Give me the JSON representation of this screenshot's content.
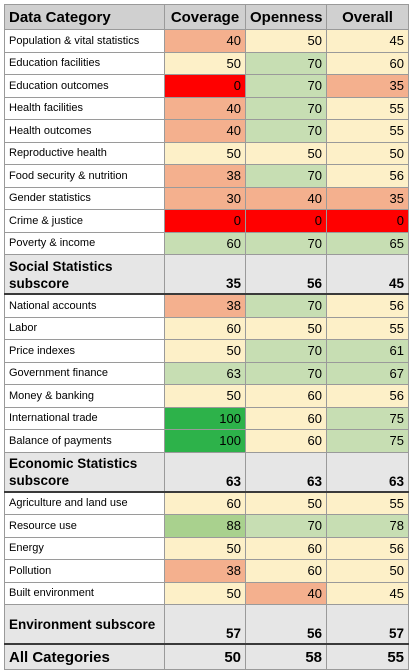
{
  "headers": {
    "category": "Data Category",
    "coverage": "Coverage",
    "openness": "Openness",
    "overall": "Overall"
  },
  "colors": {
    "light": "#fdf0c8",
    "green": "#c7deb3",
    "orange": "#f4b08e",
    "red": "#ff0000",
    "dark_green": "#2db24a",
    "mid_green": "#a9d18e",
    "sub_bg": "#e6e6e6"
  },
  "sections": [
    {
      "rows": [
        {
          "label": "Population & vital statistics",
          "coverage": "40",
          "openness": "50",
          "overall": "45",
          "c": [
            "orange",
            "light",
            "light"
          ]
        },
        {
          "label": "Education facilities",
          "coverage": "50",
          "openness": "70",
          "overall": "60",
          "c": [
            "light",
            "green",
            "light"
          ]
        },
        {
          "label": "Education outcomes",
          "coverage": "0",
          "openness": "70",
          "overall": "35",
          "c": [
            "red",
            "green",
            "orange"
          ]
        },
        {
          "label": "Health facilities",
          "coverage": "40",
          "openness": "70",
          "overall": "55",
          "c": [
            "orange",
            "green",
            "light"
          ]
        },
        {
          "label": "Health outcomes",
          "coverage": "40",
          "openness": "70",
          "overall": "55",
          "c": [
            "orange",
            "green",
            "light"
          ]
        },
        {
          "label": "Reproductive health",
          "coverage": "50",
          "openness": "50",
          "overall": "50",
          "c": [
            "light",
            "light",
            "light"
          ]
        },
        {
          "label": "Food security & nutrition",
          "coverage": "38",
          "openness": "70",
          "overall": "56",
          "c": [
            "orange",
            "green",
            "light"
          ]
        },
        {
          "label": "Gender statistics",
          "coverage": "30",
          "openness": "40",
          "overall": "35",
          "c": [
            "orange",
            "orange",
            "orange"
          ]
        },
        {
          "label": "Crime & justice",
          "coverage": "0",
          "openness": "0",
          "overall": "0",
          "c": [
            "red",
            "red",
            "red"
          ]
        },
        {
          "label": "Poverty & income",
          "coverage": "60",
          "openness": "70",
          "overall": "65",
          "c": [
            "green",
            "green",
            "green"
          ]
        }
      ],
      "subscore": {
        "label": "Social Statistics subscore",
        "coverage": "35",
        "openness": "56",
        "overall": "45"
      }
    },
    {
      "rows": [
        {
          "label": "National accounts",
          "coverage": "38",
          "openness": "70",
          "overall": "56",
          "c": [
            "orange",
            "green",
            "light"
          ]
        },
        {
          "label": "Labor",
          "coverage": "60",
          "openness": "50",
          "overall": "55",
          "c": [
            "light",
            "light",
            "light"
          ]
        },
        {
          "label": "Price indexes",
          "coverage": "50",
          "openness": "70",
          "overall": "61",
          "c": [
            "light",
            "green",
            "green"
          ]
        },
        {
          "label": "Government finance",
          "coverage": "63",
          "openness": "70",
          "overall": "67",
          "c": [
            "green",
            "green",
            "green"
          ]
        },
        {
          "label": "Money & banking",
          "coverage": "50",
          "openness": "60",
          "overall": "56",
          "c": [
            "light",
            "light",
            "light"
          ]
        },
        {
          "label": "International trade",
          "coverage": "100",
          "openness": "60",
          "overall": "75",
          "c": [
            "dark_green",
            "light",
            "green"
          ]
        },
        {
          "label": "Balance of payments",
          "coverage": "100",
          "openness": "60",
          "overall": "75",
          "c": [
            "dark_green",
            "light",
            "green"
          ]
        }
      ],
      "subscore": {
        "label": "Economic Statistics subscore",
        "coverage": "63",
        "openness": "63",
        "overall": "63"
      }
    },
    {
      "rows": [
        {
          "label": "Agriculture and land use",
          "coverage": "60",
          "openness": "50",
          "overall": "55",
          "c": [
            "light",
            "light",
            "light"
          ]
        },
        {
          "label": "Resource use",
          "coverage": "88",
          "openness": "70",
          "overall": "78",
          "c": [
            "mid_green",
            "green",
            "green"
          ]
        },
        {
          "label": "Energy",
          "coverage": "50",
          "openness": "60",
          "overall": "56",
          "c": [
            "light",
            "light",
            "light"
          ]
        },
        {
          "label": "Pollution",
          "coverage": "38",
          "openness": "60",
          "overall": "50",
          "c": [
            "orange",
            "light",
            "light"
          ]
        },
        {
          "label": "Built environment",
          "coverage": "50",
          "openness": "40",
          "overall": "45",
          "c": [
            "light",
            "orange",
            "light"
          ]
        }
      ],
      "subscore": {
        "label": "Environment subscore",
        "coverage": "57",
        "openness": "56",
        "overall": "57"
      }
    }
  ],
  "total": {
    "label": "All Categories",
    "coverage": "50",
    "openness": "58",
    "overall": "55"
  }
}
